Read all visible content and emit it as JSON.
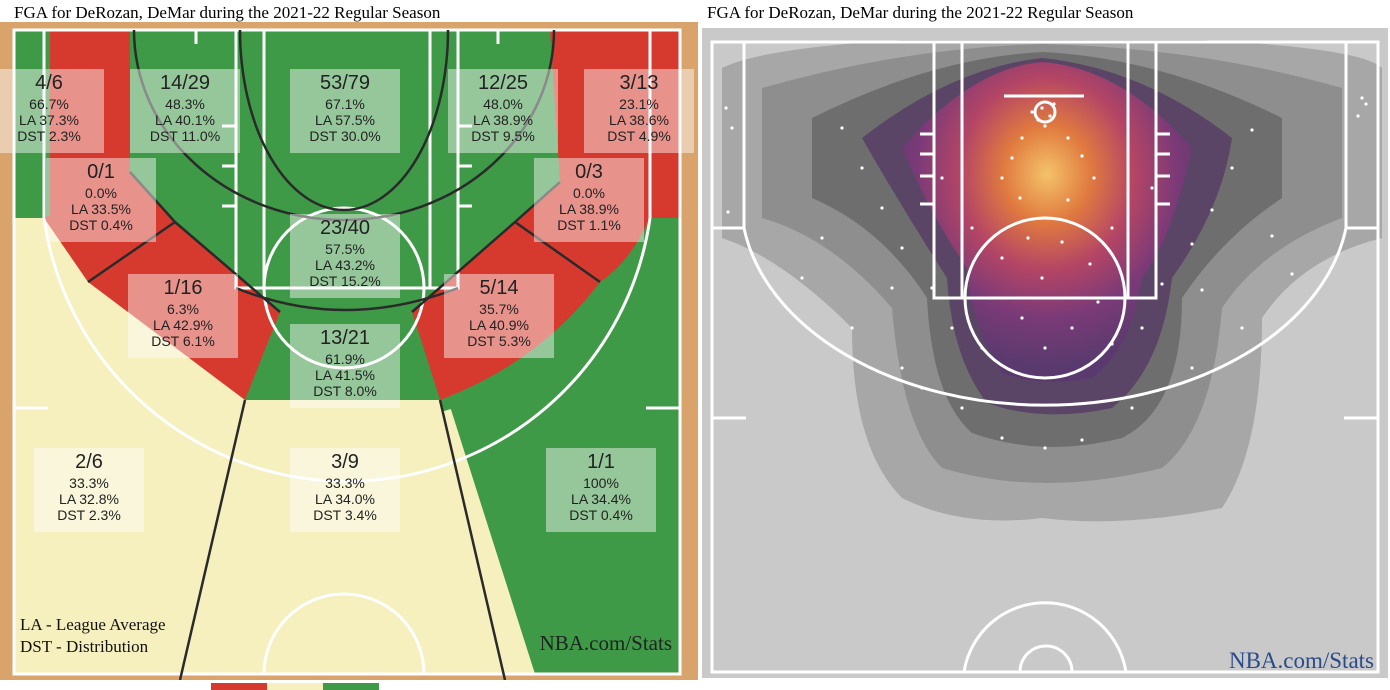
{
  "titles": {
    "left": "FGA for DeRozan, DeMar during the 2021-22 Regular Season",
    "right": "FGA for DeRozan, DeMar during the 2021-22 Regular Season"
  },
  "watermark": "NBA.com/Stats",
  "notes": {
    "la": "LA - League Average",
    "dst": "DST - Distribution"
  },
  "colors": {
    "below_average": "#d63a2f",
    "average": "#f6efbe",
    "above_average": "#3e9a47",
    "court_line": "#ffffff",
    "heatmap_background": "#c9c9c9",
    "watermark_right": "#2a4a8a"
  },
  "legend": {
    "colors": [
      "#d63a2f",
      "#f6efbe",
      "#3e9a47"
    ]
  },
  "chart_data": [
    {
      "type": "heatmap",
      "title": "FGA for DeRozan, DeMar during the 2021-22 Regular Season",
      "zones": [
        {
          "made_attempts": "4/6",
          "fg_pct": "66.7%",
          "la": "LA 37.3%",
          "dst": "DST 2.3%",
          "color": "above"
        },
        {
          "made_attempts": "14/29",
          "fg_pct": "48.3%",
          "la": "LA 40.1%",
          "dst": "DST 11.0%",
          "color": "above"
        },
        {
          "made_attempts": "53/79",
          "fg_pct": "67.1%",
          "la": "LA 57.5%",
          "dst": "DST 30.0%",
          "color": "above"
        },
        {
          "made_attempts": "12/25",
          "fg_pct": "48.0%",
          "la": "LA 38.9%",
          "dst": "DST 9.5%",
          "color": "above"
        },
        {
          "made_attempts": "3/13",
          "fg_pct": "23.1%",
          "la": "LA 38.6%",
          "dst": "DST 4.9%",
          "color": "below"
        },
        {
          "made_attempts": "0/1",
          "fg_pct": "0.0%",
          "la": "LA 33.5%",
          "dst": "DST 0.4%",
          "color": "below"
        },
        {
          "made_attempts": "0/3",
          "fg_pct": "0.0%",
          "la": "LA 38.9%",
          "dst": "DST 1.1%",
          "color": "below"
        },
        {
          "made_attempts": "23/40",
          "fg_pct": "57.5%",
          "la": "LA 43.2%",
          "dst": "DST 15.2%",
          "color": "above"
        },
        {
          "made_attempts": "1/16",
          "fg_pct": "6.3%",
          "la": "LA 42.9%",
          "dst": "DST 6.1%",
          "color": "below"
        },
        {
          "made_attempts": "5/14",
          "fg_pct": "35.7%",
          "la": "LA 40.9%",
          "dst": "DST 5.3%",
          "color": "below"
        },
        {
          "made_attempts": "13/21",
          "fg_pct": "61.9%",
          "la": "LA 41.5%",
          "dst": "DST 8.0%",
          "color": "above"
        },
        {
          "made_attempts": "2/6",
          "fg_pct": "33.3%",
          "la": "LA 32.8%",
          "dst": "DST 2.3%",
          "color": "average"
        },
        {
          "made_attempts": "3/9",
          "fg_pct": "33.3%",
          "la": "LA 34.0%",
          "dst": "DST 3.4%",
          "color": "average"
        },
        {
          "made_attempts": "1/1",
          "fg_pct": "100%",
          "la": "LA 34.4%",
          "dst": "DST 0.4%",
          "color": "above"
        }
      ]
    },
    {
      "type": "heatmap",
      "title": "FGA for DeRozan, DeMar during the 2021-22 Regular Season",
      "description_density": "shot density contours, peak at the rim"
    }
  ]
}
